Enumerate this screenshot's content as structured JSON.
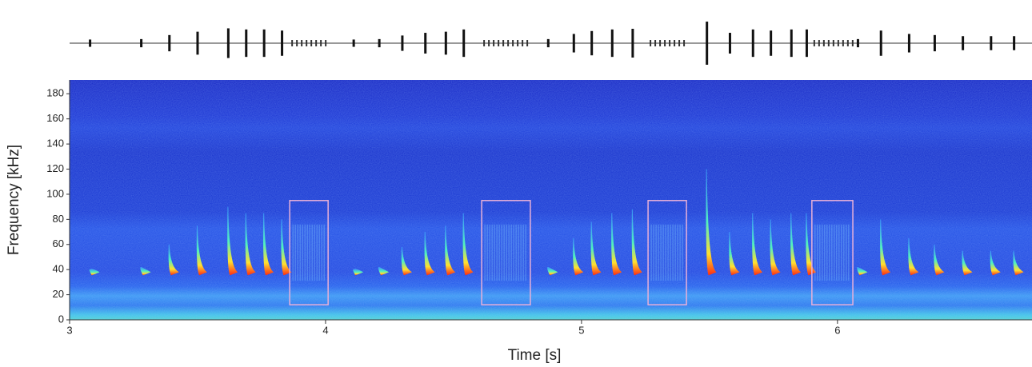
{
  "chart_data": {
    "type": "spectrogram",
    "x_label": "Time [s]",
    "y_label": "Frequency [kHz]",
    "xlim": [
      3,
      6.76
    ],
    "xticks": [
      3,
      4,
      5,
      6
    ],
    "ylim": [
      0,
      191
    ],
    "yticks": [
      0,
      20,
      40,
      60,
      80,
      100,
      120,
      140,
      160,
      180
    ],
    "box_color": "#e8b0d8",
    "calls": {
      "times": [
        3.08,
        3.28,
        3.39,
        3.5,
        3.62,
        3.69,
        3.76,
        3.83,
        4.11,
        4.21,
        4.3,
        4.39,
        4.47,
        4.54,
        4.87,
        4.97,
        5.04,
        5.12,
        5.2,
        5.49,
        5.58,
        5.67,
        5.74,
        5.82,
        5.88,
        6.08,
        6.17,
        6.28,
        6.38,
        6.49,
        6.6,
        6.69
      ],
      "start_freq": [
        40,
        42,
        60,
        75,
        90,
        85,
        85,
        80,
        40,
        42,
        58,
        70,
        75,
        85,
        42,
        65,
        78,
        85,
        88,
        120,
        70,
        85,
        80,
        85,
        85,
        42,
        80,
        65,
        60,
        55,
        55,
        55
      ],
      "end_freq": [
        38,
        38,
        38,
        38,
        38,
        38,
        38,
        38,
        38,
        38,
        38,
        38,
        38,
        38,
        38,
        38,
        38,
        38,
        38,
        38,
        38,
        38,
        38,
        38,
        38,
        38,
        38,
        38,
        38,
        38,
        38,
        38
      ]
    },
    "boxes": [
      {
        "t0": 3.86,
        "t1": 4.01,
        "f0": 12,
        "f1": 95
      },
      {
        "t0": 4.61,
        "t1": 4.8,
        "f0": 12,
        "f1": 95
      },
      {
        "t0": 5.26,
        "t1": 5.41,
        "f0": 12,
        "f1": 95
      },
      {
        "t0": 5.9,
        "t1": 6.06,
        "f0": 12,
        "f1": 95
      }
    ]
  }
}
